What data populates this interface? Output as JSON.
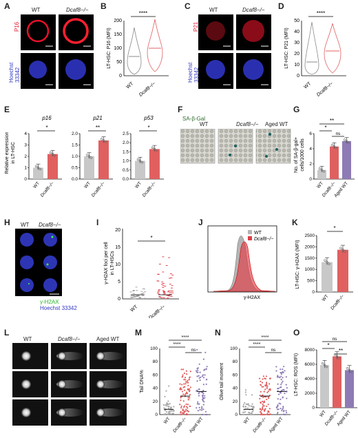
{
  "panels": {
    "A": {
      "label": "A",
      "col_wt": "WT",
      "col_ko": "Dcaf8−/−",
      "row1": "P16",
      "row2": "Hoechst 33342"
    },
    "B": {
      "label": "B",
      "ylabel": "LT-HSC: P16 (MFI)",
      "sig": "****",
      "ticks": [
        "0",
        "50",
        "100",
        "150",
        "200"
      ],
      "x": [
        "WT",
        "Dcaf8−/−"
      ]
    },
    "C": {
      "label": "C",
      "col_wt": "WT",
      "col_ko": "Dcaf8−/−",
      "row1": "P21",
      "row2": "Hoechst 33342"
    },
    "D": {
      "label": "D",
      "ylabel": "LT-HSC: P21 (MFI)",
      "sig": "****",
      "ticks": [
        "0",
        "10",
        "20",
        "30",
        "40",
        "50"
      ],
      "x": [
        "WT",
        "Dcaf8−/−"
      ]
    },
    "E": {
      "label": "E",
      "ylabel": "Relative expression in LT-HSC",
      "genes": [
        "p16",
        "p21",
        "p53"
      ],
      "sigs": [
        "*",
        "**",
        "*"
      ],
      "ticks1": [
        "0",
        "1",
        "2",
        "3",
        "4"
      ],
      "ticks2": [
        "0.0",
        "0.5",
        "1.0",
        "1.5",
        "2.0"
      ],
      "ticks3": [
        "0.0",
        "0.5",
        "1.0",
        "1.5",
        "2.0",
        "2.5"
      ],
      "x": [
        "WT",
        "Dcaf8−/−"
      ]
    },
    "F": {
      "label": "F",
      "title": "SA-β-Gal",
      "cols": [
        "WT",
        "Dcaf8−/−",
        "Aged WT"
      ]
    },
    "G": {
      "label": "G",
      "ylabel": "No. of SA-β-gal+ cells/1000 cells",
      "ticks": [
        "0",
        "2",
        "4",
        "6"
      ],
      "sigs": [
        "*",
        "**",
        "ns"
      ],
      "x": [
        "WT",
        "Dcaf8−/−",
        "Aged WT"
      ]
    },
    "H": {
      "label": "H",
      "col_wt": "WT",
      "col_ko": "Dcaf8−/−",
      "legend1": "γ-H2AX",
      "legend2": "Hoechst 33342"
    },
    "I": {
      "label": "I",
      "ylabel": "γ-H2AX foci per cell in LT-HSCs",
      "ticks": [
        "0",
        "5",
        "10",
        "15",
        "20"
      ],
      "sig": "*",
      "x": [
        "WT",
        "Dcaf8−/−"
      ]
    },
    "J": {
      "label": "J",
      "legend": [
        "WT",
        "Dcaf8−/−"
      ],
      "xlabel": "γ-H2AX"
    },
    "K": {
      "label": "K",
      "ylabel": "LT-HSC: γ-H2AX (MFI)",
      "ticks": [
        "0",
        "500",
        "1000",
        "1500",
        "2000",
        "2500"
      ],
      "sig": "*",
      "x": [
        "WT",
        "Dcaf8−/−"
      ]
    },
    "L": {
      "label": "L",
      "cols": [
        "WT",
        "Dcaf8−/−",
        "Aged WT"
      ]
    },
    "M": {
      "label": "M",
      "ylabel": "Tail DNA%",
      "ticks": [
        "0",
        "20",
        "40",
        "60",
        "80",
        "100"
      ],
      "sigs": [
        "****",
        "****",
        "ns"
      ],
      "x": [
        "WT",
        "Dcaf8−/−",
        "Aged WT"
      ]
    },
    "N": {
      "label": "N",
      "ylabel": "Olive tail moment",
      "ticks": [
        "0",
        "20",
        "40",
        "60",
        "80",
        "100"
      ],
      "sigs": [
        "****",
        "****",
        "ns"
      ],
      "x": [
        "WT",
        "Dcaf8−/−",
        "Aged WT"
      ]
    },
    "O": {
      "label": "O",
      "ylabel": "LT-HSC: ROS (MFI)",
      "ticks": [
        "0",
        "2000",
        "4000",
        "6000",
        "8000"
      ],
      "sigs": [
        "ns",
        "*",
        "**"
      ],
      "x": [
        "WT",
        "Dcaf8−/−",
        "Aged WT"
      ]
    }
  },
  "colors": {
    "wt": "#c8c8c8",
    "ko": "#e06060",
    "aged": "#8e7bb5",
    "red": "#e8102a",
    "blue": "#3036c0"
  },
  "chart_data": [
    {
      "type": "bar",
      "panel": "E-p16",
      "categories": [
        "WT",
        "Dcaf8−/−"
      ],
      "values": [
        1.0,
        2.2
      ],
      "ylim": [
        0,
        4
      ]
    },
    {
      "type": "bar",
      "panel": "E-p21",
      "categories": [
        "WT",
        "Dcaf8−/−"
      ],
      "values": [
        1.0,
        1.7
      ],
      "ylim": [
        0,
        2
      ]
    },
    {
      "type": "bar",
      "panel": "E-p53",
      "categories": [
        "WT",
        "Dcaf8−/−"
      ],
      "values": [
        1.0,
        1.65
      ],
      "ylim": [
        0,
        2.5
      ]
    },
    {
      "type": "bar",
      "panel": "G",
      "categories": [
        "WT",
        "Dcaf8−/−",
        "Aged WT"
      ],
      "values": [
        1.2,
        4.3,
        5.0
      ],
      "ylim": [
        0,
        6
      ]
    },
    {
      "type": "bar",
      "panel": "K",
      "categories": [
        "WT",
        "Dcaf8−/−"
      ],
      "values": [
        1320,
        1870
      ],
      "ylim": [
        0,
        2500
      ]
    },
    {
      "type": "bar",
      "panel": "O",
      "categories": [
        "WT",
        "Dcaf8−/−",
        "Aged WT"
      ],
      "values": [
        5900,
        7100,
        5200
      ],
      "ylim": [
        0,
        8000
      ]
    }
  ]
}
